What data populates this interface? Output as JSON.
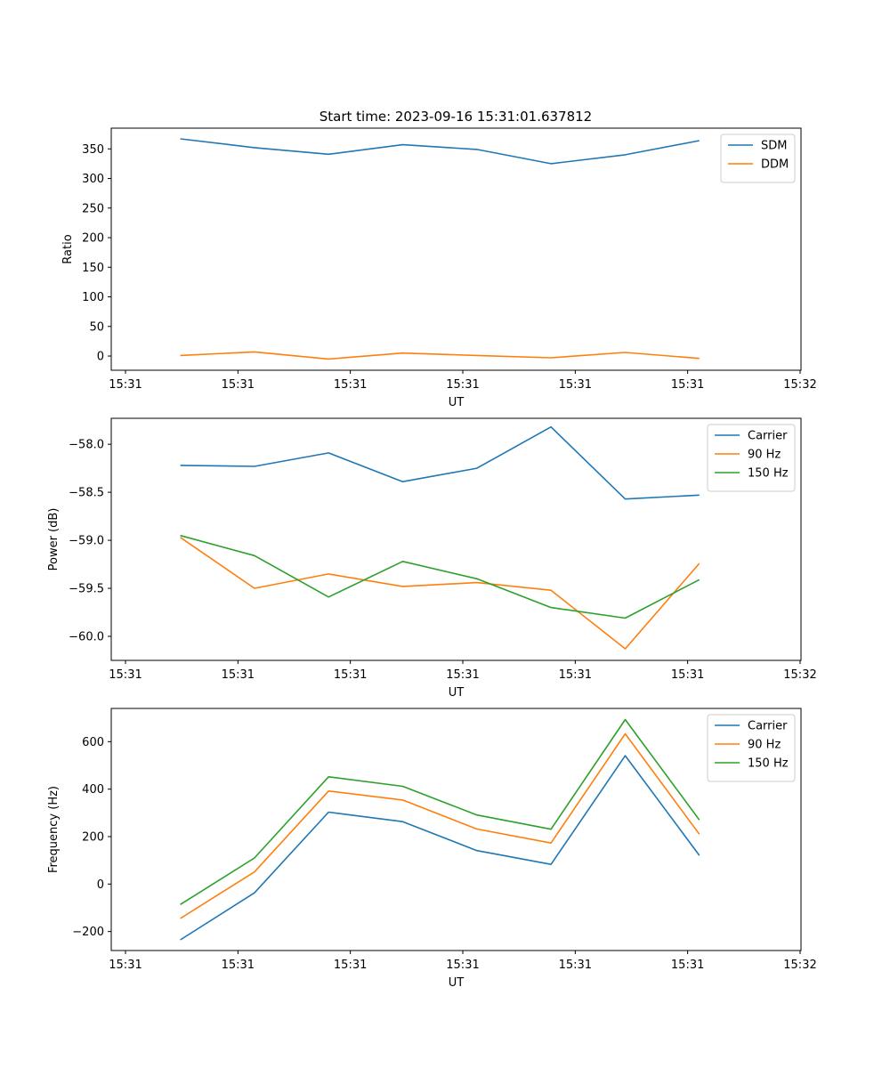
{
  "figure_title": "Start time: 2023-09-16 15:31:01.637812",
  "colors": {
    "blue": "#1f77b4",
    "orange": "#ff7f0e",
    "green": "#2ca02c"
  },
  "chart_data": [
    {
      "type": "line",
      "title": "Start time: 2023-09-16 15:31:01.637812",
      "xlabel": "UT",
      "ylabel": "Ratio",
      "xlim": [
        0,
        1
      ],
      "ylim": [
        -24,
        385
      ],
      "x_tick_positions": [
        0,
        0.1667,
        0.3333,
        0.5,
        0.6667,
        0.8333,
        1.0
      ],
      "x_tick_labels": [
        "15:31",
        "15:31",
        "15:31",
        "15:31",
        "15:31",
        "15:31",
        "15:32"
      ],
      "y_ticks": [
        0,
        50,
        100,
        150,
        200,
        250,
        300,
        350
      ],
      "x": [
        0.0813,
        0.1912,
        0.3011,
        0.4109,
        0.5209,
        0.6308,
        0.7407,
        0.8506
      ],
      "legend": "top-right",
      "series": [
        {
          "name": "SDM",
          "color": "#1f77b4",
          "values": [
            367,
            352,
            341,
            357,
            349,
            325,
            340,
            364
          ]
        },
        {
          "name": "DDM",
          "color": "#ff7f0e",
          "values": [
            1,
            7,
            -5,
            5,
            1,
            -3,
            6,
            -4
          ]
        }
      ]
    },
    {
      "type": "line",
      "title": "",
      "xlabel": "UT",
      "ylabel": "Power (dB)",
      "xlim": [
        0,
        1
      ],
      "ylim": [
        -60.25,
        -57.73
      ],
      "x_tick_positions": [
        0,
        0.1667,
        0.3333,
        0.5,
        0.6667,
        0.8333,
        1.0
      ],
      "x_tick_labels": [
        "15:31",
        "15:31",
        "15:31",
        "15:31",
        "15:31",
        "15:31",
        "15:32"
      ],
      "y_ticks": [
        -60.0,
        -59.5,
        -59.0,
        -58.5,
        -58.0
      ],
      "y_tick_labels": [
        "−60.0",
        "−59.5",
        "−59.0",
        "−58.5",
        "−58.0"
      ],
      "x": [
        0.0813,
        0.1912,
        0.3011,
        0.4109,
        0.5209,
        0.6308,
        0.7407,
        0.8506
      ],
      "legend": "top-right",
      "series": [
        {
          "name": "Carrier",
          "color": "#1f77b4",
          "values": [
            -58.22,
            -58.23,
            -58.09,
            -58.39,
            -58.25,
            -57.82,
            -58.57,
            -58.53
          ]
        },
        {
          "name": "90 Hz",
          "color": "#ff7f0e",
          "values": [
            -58.97,
            -59.5,
            -59.35,
            -59.48,
            -59.44,
            -59.52,
            -60.13,
            -59.24
          ]
        },
        {
          "name": "150 Hz",
          "color": "#2ca02c",
          "values": [
            -58.95,
            -59.16,
            -59.59,
            -59.22,
            -59.4,
            -59.7,
            -59.81,
            -59.41
          ]
        }
      ]
    },
    {
      "type": "line",
      "title": "",
      "xlabel": "UT",
      "ylabel": "Frequency (Hz)",
      "xlim": [
        0,
        1
      ],
      "ylim": [
        -280,
        740
      ],
      "x_tick_positions": [
        0,
        0.1667,
        0.3333,
        0.5,
        0.6667,
        0.8333,
        1.0
      ],
      "x_tick_labels": [
        "15:31",
        "15:31",
        "15:31",
        "15:31",
        "15:31",
        "15:31",
        "15:32"
      ],
      "y_ticks": [
        -200,
        0,
        200,
        400,
        600
      ],
      "y_tick_labels": [
        "−200",
        "0",
        "200",
        "400",
        "600"
      ],
      "x": [
        0.0813,
        0.1912,
        0.3011,
        0.4109,
        0.5209,
        0.6308,
        0.7407,
        0.8506
      ],
      "legend": "top-right",
      "series": [
        {
          "name": "Carrier",
          "color": "#1f77b4",
          "values": [
            -235,
            -37,
            303,
            263,
            141,
            83,
            541,
            121
          ]
        },
        {
          "name": "90 Hz",
          "color": "#ff7f0e",
          "values": [
            -145,
            51,
            392,
            354,
            232,
            173,
            633,
            210
          ]
        },
        {
          "name": "150 Hz",
          "color": "#2ca02c",
          "values": [
            -86,
            110,
            452,
            412,
            291,
            231,
            693,
            270
          ]
        }
      ]
    }
  ]
}
